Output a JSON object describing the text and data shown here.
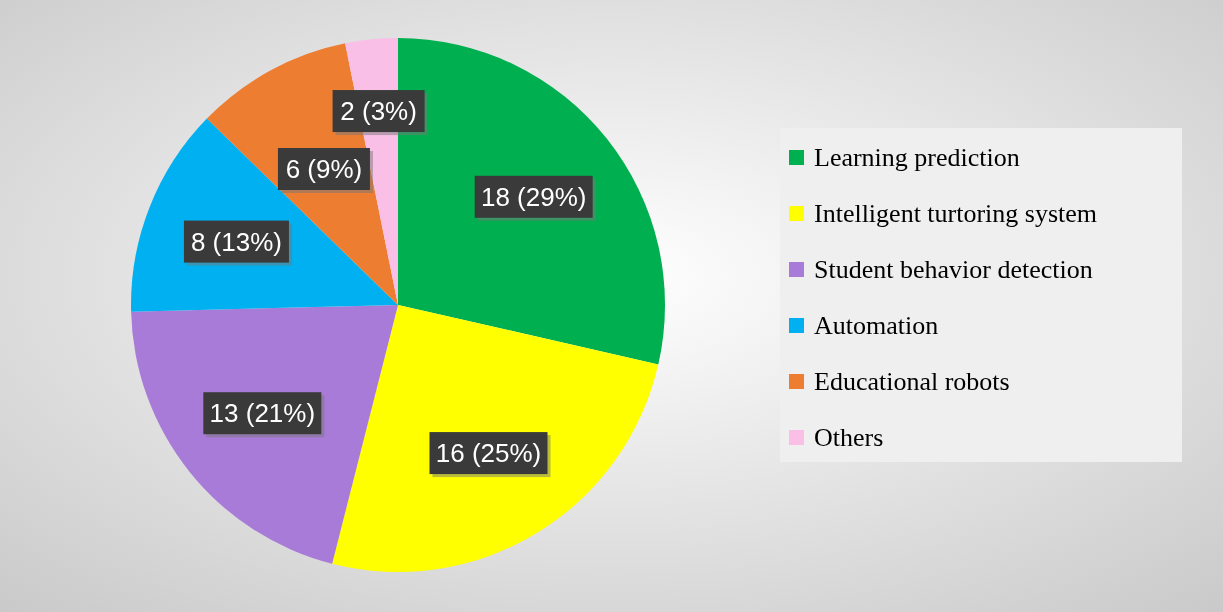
{
  "chart_data": {
    "type": "pie",
    "categories": [
      "Learning prediction",
      "Intelligent turtoring system",
      "Student behavior detection",
      "Automation",
      "Educational robots",
      "Others"
    ],
    "values": [
      18,
      16,
      13,
      8,
      6,
      2
    ],
    "colors": [
      "#00b050",
      "#ffff00",
      "#a87bd8",
      "#00b0f0",
      "#ed7d31",
      "#f9bfe6"
    ],
    "value_labels": [
      "18 (29%)",
      "16 (25%)",
      "13 (21%)",
      "8 (13%)",
      "6 (9%)",
      "2 (3%)"
    ],
    "legend": "right"
  }
}
